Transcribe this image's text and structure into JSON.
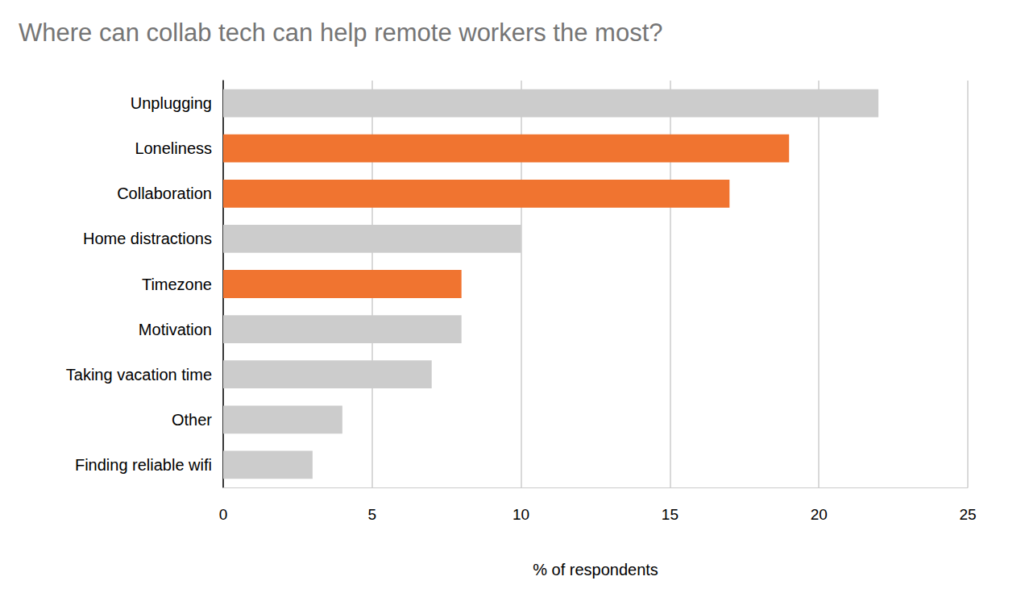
{
  "chart_data": {
    "type": "bar",
    "title": "Where can collab tech can help remote workers the most?",
    "x_label": "% of respondents",
    "orientation": "horizontal",
    "categories": [
      "Unplugging",
      "Loneliness",
      "Collaboration",
      "Home distractions",
      "Timezone",
      "Motivation",
      "Taking vacation time",
      "Other",
      "Finding reliable wifi"
    ],
    "values": [
      22,
      19,
      17,
      10,
      8,
      8,
      7,
      4,
      3
    ],
    "colors": [
      "#cccccc",
      "#f07430",
      "#f07430",
      "#cccccc",
      "#f07430",
      "#cccccc",
      "#cccccc",
      "#cccccc",
      "#cccccc"
    ],
    "xlim": [
      0,
      25
    ],
    "xticks": [
      0,
      5,
      10,
      15,
      20,
      25
    ],
    "grid": true
  }
}
